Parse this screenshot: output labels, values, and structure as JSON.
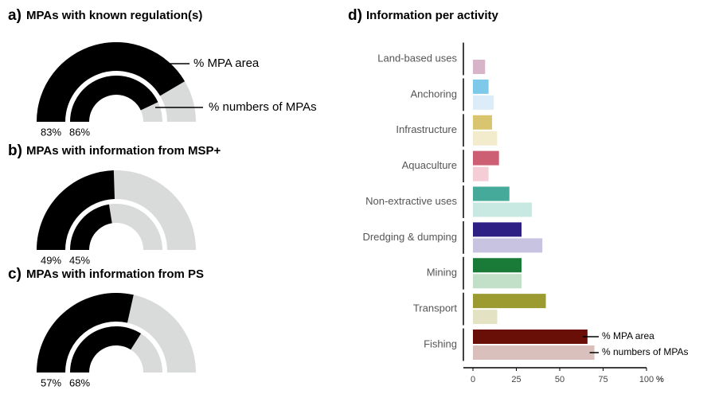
{
  "chart_data": [
    {
      "type": "gauge",
      "label": "a)",
      "title": "MPAs with known regulation(s)",
      "values": [
        83,
        86
      ],
      "value_labels": [
        "83%",
        "86%"
      ],
      "annotations": [
        "% MPA area",
        "% numbers of MPAs"
      ],
      "color": "#000000",
      "background": "#d9dbda"
    },
    {
      "type": "gauge",
      "label": "b)",
      "title": "MPAs with information from MSP+",
      "values": [
        49,
        45
      ],
      "value_labels": [
        "49%",
        "45%"
      ],
      "color": "#000000",
      "background": "#d9dbda"
    },
    {
      "type": "gauge",
      "label": "c)",
      "title": "MPAs with information from PS",
      "values": [
        57,
        68
      ],
      "value_labels": [
        "57%",
        "68%"
      ],
      "color": "#000000",
      "background": "#d9dbda"
    },
    {
      "type": "bar",
      "orientation": "horizontal",
      "label": "d)",
      "title": "Information per activity",
      "categories": [
        "Land-based uses",
        "Anchoring",
        "Infrastructure",
        "Aquaculture",
        "Non-extractive uses",
        "Dredging & dumping",
        "Mining",
        "Transport",
        "Fishing"
      ],
      "series": [
        {
          "name": "% MPA area",
          "values": [
            0,
            9,
            11,
            15,
            21,
            28,
            28,
            42,
            66
          ],
          "colors": [
            "#9c6a86",
            "#7ec8ea",
            "#d9c46f",
            "#cc5f73",
            "#45aa9a",
            "#2e1f85",
            "#1a7a38",
            "#9b9b32",
            "#6a0f08"
          ]
        },
        {
          "name": "% numbers of MPAs",
          "values": [
            7,
            12,
            14,
            9,
            34,
            40,
            28,
            14,
            70
          ],
          "colors": [
            "#d8b4c8",
            "#dcedf9",
            "#f3eccc",
            "#f5cdd6",
            "#c8e8e2",
            "#c7c3e0",
            "#c2dfc8",
            "#e3e3c4",
            "#d9c0bc"
          ]
        }
      ],
      "xlim": [
        0,
        100
      ],
      "xticks": [
        0,
        25,
        50,
        75,
        100
      ],
      "xlabel": "%"
    }
  ]
}
